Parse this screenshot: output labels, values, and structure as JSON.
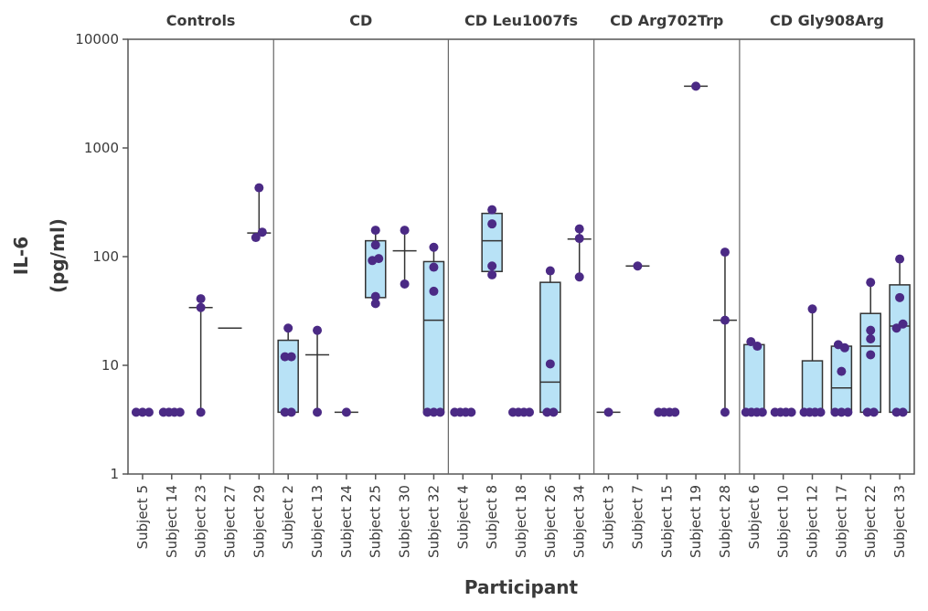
{
  "chart_data": {
    "type": "box-scatter",
    "xlabel": "Participant",
    "ylabel": [
      "IL-6",
      "(pg/ml)"
    ],
    "yscale": "log",
    "ylim": [
      1,
      10000
    ],
    "yticks": [
      1,
      10,
      100,
      1000,
      10000
    ],
    "ytick_labels": [
      "1",
      "10",
      "100",
      "1000",
      "10000"
    ],
    "colors": {
      "point": "#4b2a85",
      "box": "#b8e2f6",
      "line": "#333333"
    },
    "groups": [
      {
        "name": "Controls",
        "subjects": [
          {
            "label": "Subject 5",
            "points": [
              3.7,
              3.7,
              3.7
            ],
            "box": null,
            "center": null,
            "whisker": null
          },
          {
            "label": "Subject 14",
            "points": [
              3.7,
              3.7,
              3.7,
              3.7
            ],
            "box": null,
            "center": null,
            "whisker": null
          },
          {
            "label": "Subject 23",
            "points": [
              41,
              34,
              3.7
            ],
            "box": null,
            "center": 34,
            "whisker": [
              3.7,
              41
            ]
          },
          {
            "label": "Subject 27",
            "points": [],
            "box": null,
            "center": 22,
            "whisker": null
          },
          {
            "label": "Subject 29",
            "points": [
              430,
              150,
              168
            ],
            "box": null,
            "center": 165,
            "whisker": [
              150,
              430
            ]
          }
        ]
      },
      {
        "name": "CD",
        "subjects": [
          {
            "label": "Subject 2",
            "points": [
              22,
              12,
              12,
              3.7,
              3.7
            ],
            "box": [
              3.7,
              null,
              17
            ],
            "center": null,
            "whisker": [
              3.7,
              22
            ]
          },
          {
            "label": "Subject 13",
            "points": [
              21,
              3.7
            ],
            "box": null,
            "center": 12.5,
            "whisker": [
              3.7,
              21
            ]
          },
          {
            "label": "Subject 24",
            "points": [
              3.7
            ],
            "box": null,
            "center": 3.7,
            "whisker": null
          },
          {
            "label": "Subject 25",
            "points": [
              175,
              128,
              92,
              96,
              43,
              37
            ],
            "box": [
              42,
              null,
              140
            ],
            "center": null,
            "whisker": [
              39,
              175
            ]
          },
          {
            "label": "Subject 30",
            "points": [
              175,
              56
            ],
            "box": null,
            "center": 113,
            "whisker": [
              56,
              175
            ]
          },
          {
            "label": "Subject 32",
            "points": [
              122,
              80,
              48,
              3.7,
              3.7,
              3.7
            ],
            "box": [
              3.7,
              26,
              90
            ],
            "center": null,
            "whisker": [
              3.7,
              122
            ]
          }
        ]
      },
      {
        "name": "CD Leu1007fs",
        "subjects": [
          {
            "label": "Subject 4",
            "points": [
              3.7,
              3.7,
              3.7,
              3.7
            ],
            "box": null,
            "center": null,
            "whisker": null
          },
          {
            "label": "Subject 8",
            "points": [
              270,
              200,
              82,
              68
            ],
            "box": [
              73,
              140,
              250
            ],
            "center": null,
            "whisker": [
              70,
              270
            ]
          },
          {
            "label": "Subject 18",
            "points": [
              3.7,
              3.7,
              3.7,
              3.7
            ],
            "box": null,
            "center": null,
            "whisker": null
          },
          {
            "label": "Subject 26",
            "points": [
              74,
              10.3,
              3.7,
              3.7
            ],
            "box": [
              3.7,
              7,
              58
            ],
            "center": null,
            "whisker": [
              3.7,
              74
            ]
          },
          {
            "label": "Subject 34",
            "points": [
              180,
              147,
              65
            ],
            "box": null,
            "center": 145,
            "whisker": [
              65,
              180
            ]
          }
        ]
      },
      {
        "name": "CD Arg702Trp",
        "subjects": [
          {
            "label": "Subject 3",
            "points": [
              3.7
            ],
            "box": null,
            "center": 3.7,
            "whisker": null
          },
          {
            "label": "Subject 7",
            "points": [
              82
            ],
            "box": null,
            "center": 82,
            "whisker": null
          },
          {
            "label": "Subject 15",
            "points": [
              3.7,
              3.7,
              3.7,
              3.7
            ],
            "box": null,
            "center": null,
            "whisker": null
          },
          {
            "label": "Subject 19",
            "points": [
              3700
            ],
            "box": null,
            "center": 3700,
            "whisker": null
          },
          {
            "label": "Subject 28",
            "points": [
              110,
              26,
              3.7
            ],
            "box": null,
            "center": 26,
            "whisker": [
              3.7,
              110
            ]
          }
        ]
      },
      {
        "name": "CD Gly908Arg",
        "subjects": [
          {
            "label": "Subject 6",
            "points": [
              16.5,
              15,
              3.7,
              3.7,
              3.7,
              3.7
            ],
            "box": [
              3.7,
              null,
              15.5
            ],
            "center": null,
            "whisker": null
          },
          {
            "label": "Subject 10",
            "points": [
              3.7,
              3.7,
              3.7,
              3.7
            ],
            "box": null,
            "center": null,
            "whisker": null
          },
          {
            "label": "Subject 12",
            "points": [
              33,
              3.7,
              3.7,
              3.7,
              3.7
            ],
            "box": [
              3.7,
              null,
              11
            ],
            "center": null,
            "whisker": [
              3.7,
              33
            ]
          },
          {
            "label": "Subject 17",
            "points": [
              15.5,
              14.5,
              8.8,
              3.7,
              3.7,
              3.7
            ],
            "box": [
              3.7,
              6.2,
              15
            ],
            "center": null,
            "whisker": null
          },
          {
            "label": "Subject 22",
            "points": [
              58,
              21,
              17.5,
              12.5,
              3.7,
              3.7
            ],
            "box": [
              3.7,
              15,
              30
            ],
            "center": null,
            "whisker": [
              3.7,
              58
            ]
          },
          {
            "label": "Subject 33",
            "points": [
              95,
              42,
              22,
              24,
              3.7,
              3.7
            ],
            "box": [
              3.7,
              23,
              55
            ],
            "center": null,
            "whisker": [
              3.7,
              95
            ]
          }
        ]
      }
    ]
  }
}
